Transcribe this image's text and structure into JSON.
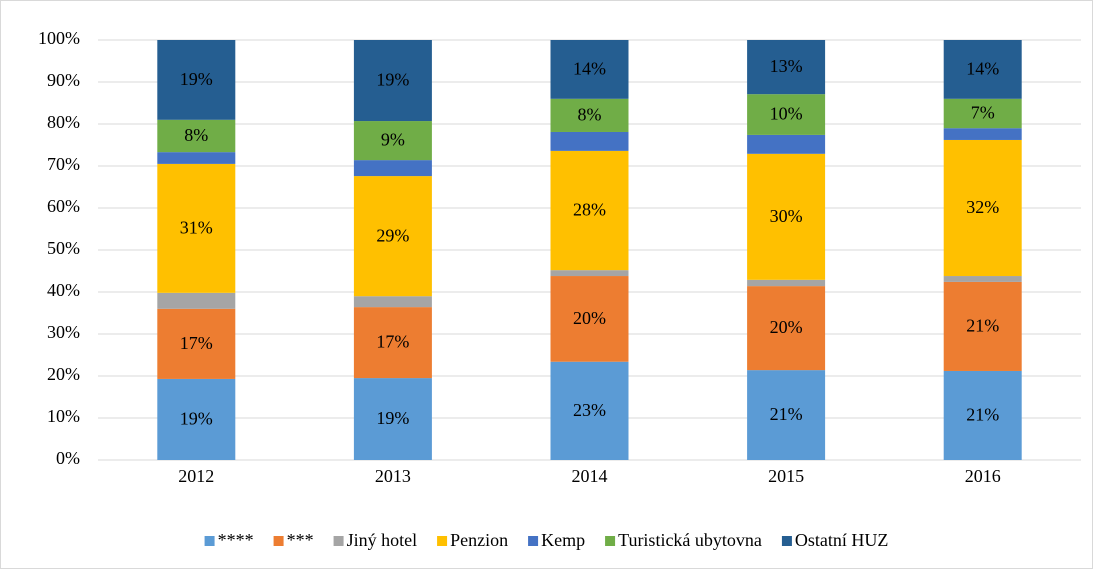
{
  "chart_data": {
    "type": "stacked_bar_100",
    "categories": [
      "2012",
      "2013",
      "2014",
      "2015",
      "2016"
    ],
    "series": [
      {
        "name": "****",
        "color": "#5b9bd5",
        "values": [
          19.3,
          19.5,
          23.4,
          21.4,
          21.2
        ],
        "value_labels": [
          "19%",
          "19%",
          "23%",
          "21%",
          "21%"
        ]
      },
      {
        "name": "***",
        "color": "#ed7d31",
        "values": [
          16.7,
          16.9,
          20.4,
          20,
          21.2
        ],
        "value_labels": [
          "17%",
          "17%",
          "20%",
          "20%",
          "21%"
        ]
      },
      {
        "name": "Jiný hotel",
        "color": "#a5a5a5",
        "values": [
          3.8,
          2.6,
          1.4,
          1.5,
          1.4
        ]
      },
      {
        "name": "Penzion",
        "color": "#ffc000",
        "values": [
          30.7,
          28.6,
          28.4,
          30,
          32.4
        ],
        "value_labels": [
          "31%",
          "29%",
          "28%",
          "30%",
          "32%"
        ]
      },
      {
        "name": "Kemp",
        "color": "#4472c4",
        "values": [
          2.8,
          3.8,
          4.5,
          4.5,
          2.8
        ]
      },
      {
        "name": "Turistická ubytovna",
        "color": "#70ad47",
        "values": [
          7.7,
          9.3,
          7.9,
          9.7,
          7
        ],
        "value_labels": [
          "8%",
          "9%",
          "8%",
          "10%",
          "7%"
        ]
      },
      {
        "name": "Ostatní HUZ",
        "color": "#255e91",
        "values": [
          19,
          19.3,
          14,
          12.9,
          14
        ],
        "value_labels": [
          "19%",
          "19%",
          "14%",
          "13%",
          "14%"
        ]
      }
    ],
    "ylim": [
      0,
      100
    ],
    "yticks": [
      {
        "value": 0,
        "label": "0%"
      },
      {
        "value": 10,
        "label": "10%"
      },
      {
        "value": 20,
        "label": "20%"
      },
      {
        "value": 30,
        "label": "30%"
      },
      {
        "value": 40,
        "label": "40%"
      },
      {
        "value": 50,
        "label": "50%"
      },
      {
        "value": 60,
        "label": "60%"
      },
      {
        "value": 70,
        "label": "70%"
      },
      {
        "value": 80,
        "label": "80%"
      },
      {
        "value": 90,
        "label": "90%"
      },
      {
        "value": 100,
        "label": "100%"
      }
    ],
    "grid": true,
    "legend": "bottom"
  }
}
